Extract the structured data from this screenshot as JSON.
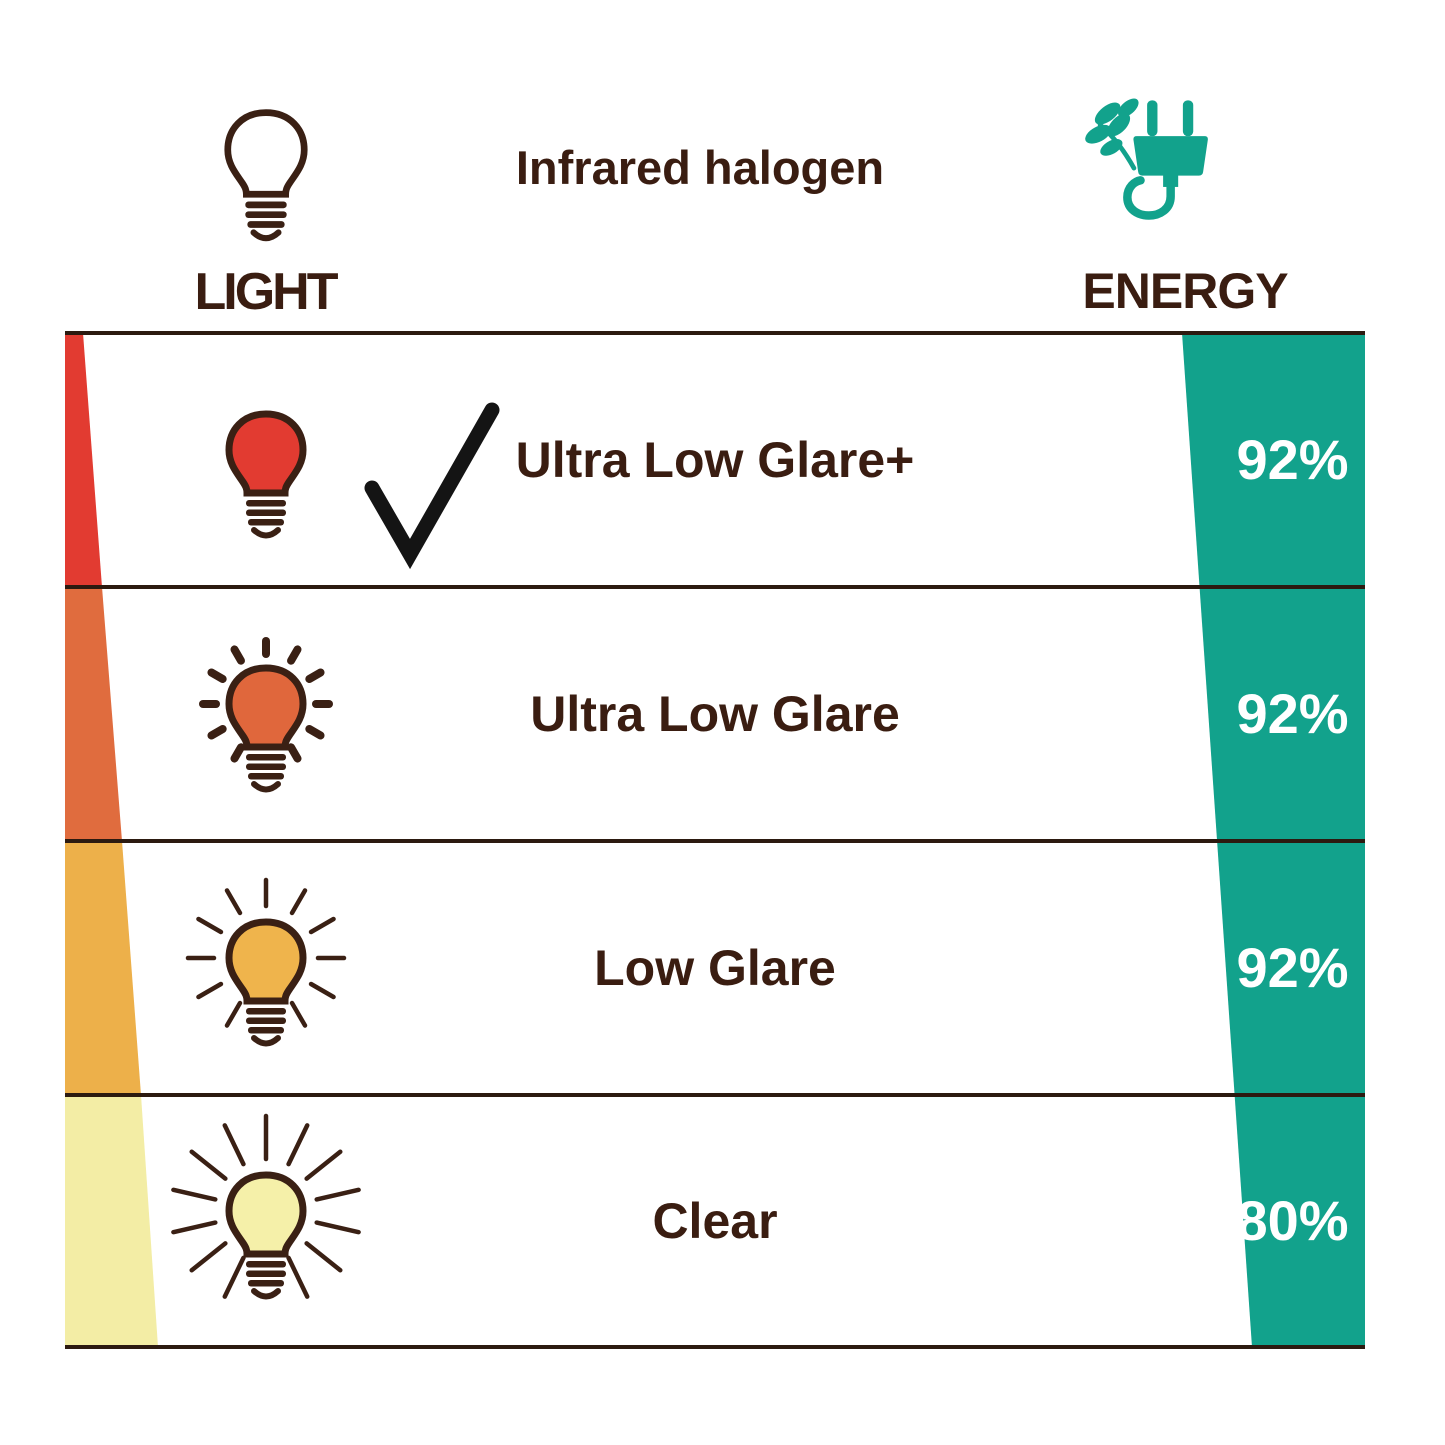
{
  "header": {
    "title": "Infrared halogen",
    "light": {
      "label": "LIGHT",
      "icon": "light-bulb-outline-icon"
    },
    "energy": {
      "label": "ENERGY",
      "icon": "leaf-plug-icon"
    }
  },
  "colors": {
    "ink": "#3A1D11",
    "line": "#2C1A10",
    "outline": "#3A2014",
    "check": "#141414",
    "energy_green": "#12A28C",
    "band_red": "#E23B31",
    "band_orange": "#E06C3E",
    "band_yellow": "#EDB04A",
    "band_pale_yellow": "#F3EDA5",
    "percent_text": "#FFFFFF"
  },
  "rows": [
    {
      "label": "Ultra Low Glare+",
      "energy": "92%",
      "checked": true,
      "bulb": {
        "icon": "red-bulb-icon",
        "fill": "#E23B31",
        "rays": 0,
        "ray_inner": 0,
        "ray_outer": 0,
        "ray_width": 0
      }
    },
    {
      "label": "Ultra Low Glare",
      "energy": "92%",
      "checked": false,
      "bulb": {
        "icon": "orange-bulb-rays-icon",
        "fill": "#E0673C",
        "rays": 12,
        "ray_inner": 50,
        "ray_outer": 63,
        "ray_width": 8
      }
    },
    {
      "label": "Low Glare",
      "energy": "92%",
      "checked": false,
      "bulb": {
        "icon": "yellow-bulb-rays-icon",
        "fill": "#EFB44C",
        "rays": 12,
        "ray_inner": 52,
        "ray_outer": 78,
        "ray_width": 4.5
      }
    },
    {
      "label": "Clear",
      "energy": "80%",
      "checked": false,
      "bulb": {
        "icon": "pale-yellow-bulb-rays-icon",
        "fill": "#F5F0A9",
        "rays": 14,
        "ray_inner": 52,
        "ray_outer": 95,
        "ray_width": 4.5
      }
    }
  ],
  "chart_data": {
    "type": "table",
    "title": "Infrared halogen",
    "columns": [
      "LIGHT",
      "ENERGY"
    ],
    "categories": [
      "Ultra Low Glare+",
      "Ultra Low Glare",
      "Low Glare",
      "Clear"
    ],
    "energy_values_percent": [
      92,
      92,
      92,
      80
    ],
    "selected": "Ultra Low Glare+",
    "legend_position": "none",
    "notes": "Left wedge shades red to pale yellow (glare scale); right green wedge narrows downward showing energy percentage per bulb type."
  }
}
